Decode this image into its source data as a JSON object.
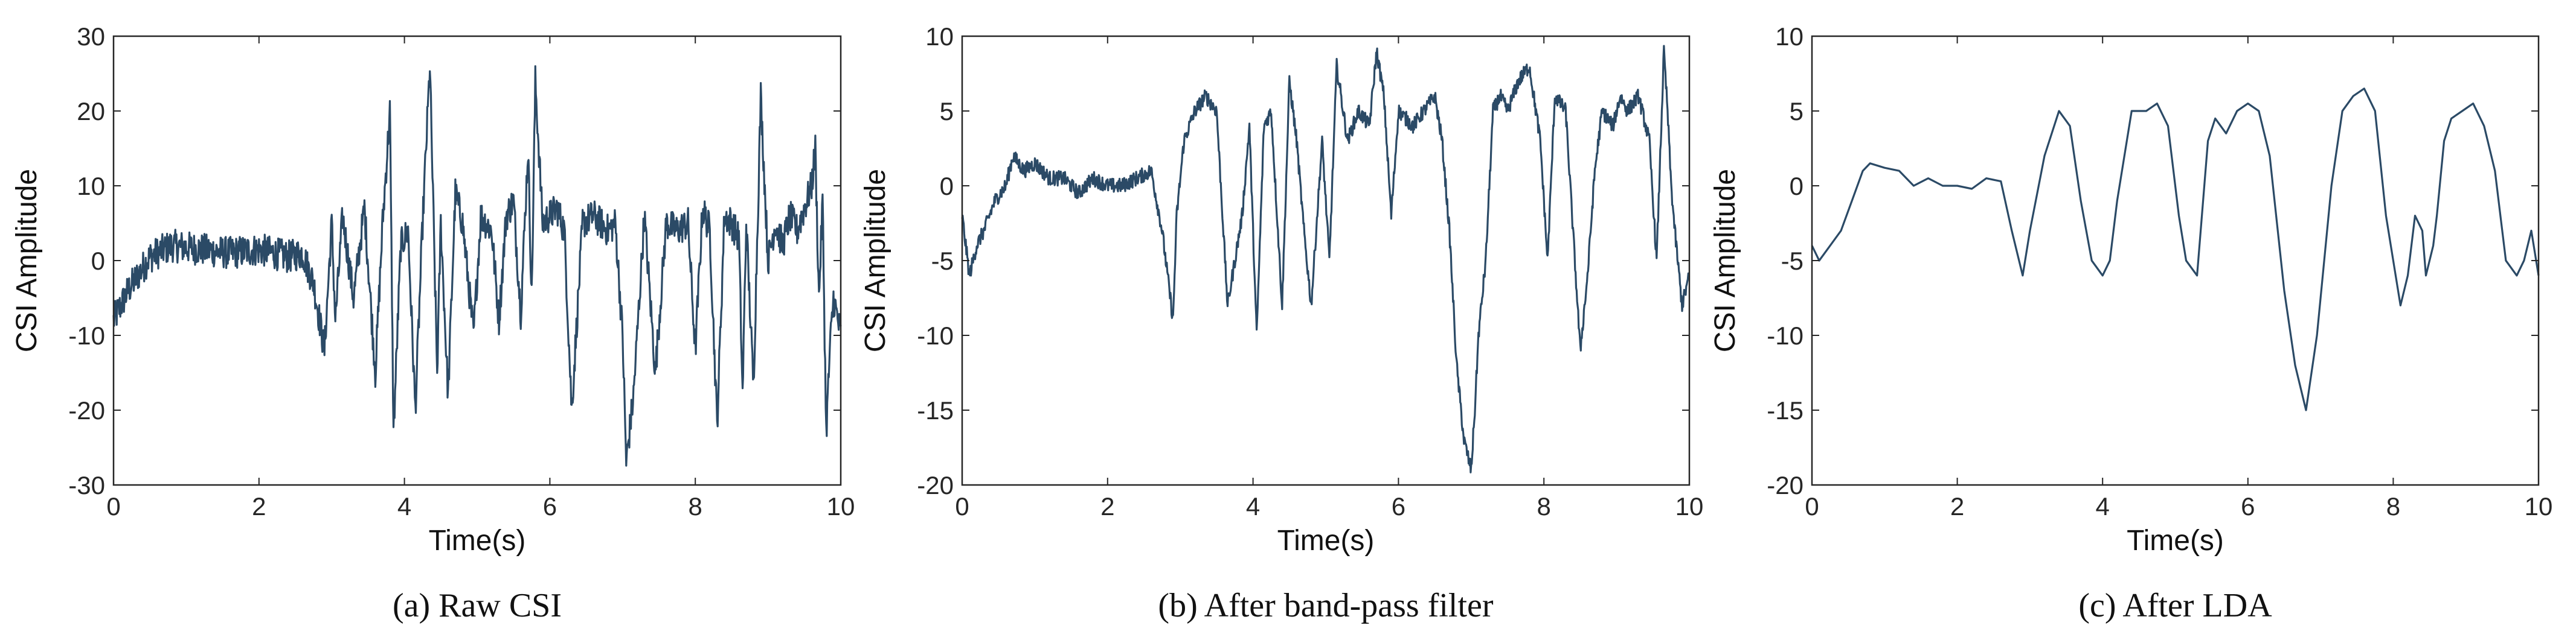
{
  "colors": {
    "line": "#2b4a66",
    "axis": "#262626",
    "background": "#ffffff"
  },
  "panels": [
    {
      "caption": "(a) Raw  CSI",
      "xlabel": "Time(s)",
      "ylabel": "CSI Amplitude",
      "xticks": [
        "0",
        "2",
        "4",
        "6",
        "8",
        "10"
      ],
      "yticks": [
        "30",
        "20",
        "10",
        "0",
        "-10",
        "-20",
        "-30"
      ]
    },
    {
      "caption": "(b) After band-pass filter",
      "xlabel": "Time(s)",
      "ylabel": "CSI Amplitude",
      "xticks": [
        "0",
        "2",
        "4",
        "6",
        "8",
        "10"
      ],
      "yticks": [
        "10",
        "5",
        "0",
        "-5",
        "-10",
        "-15",
        "-20"
      ]
    },
    {
      "caption": "(c) After LDA",
      "xlabel": "Time(s)",
      "ylabel": "CSI Amplitude",
      "xticks": [
        "0",
        "2",
        "4",
        "6",
        "8",
        "10"
      ],
      "yticks": [
        "10",
        "5",
        "0",
        "-5",
        "-10",
        "-15",
        "-20"
      ]
    }
  ],
  "chart_data": [
    {
      "type": "line",
      "xlim": [
        0,
        10
      ],
      "ylim": [
        -30,
        30
      ],
      "noise": 2.2,
      "series": [
        {
          "x": [
            0,
            0.2,
            0.4,
            0.5,
            0.8,
            1.2,
            1.6,
            2.0,
            2.4,
            2.6,
            2.75,
            2.9,
            3.0,
            3.05,
            3.15,
            3.3,
            3.45,
            3.6,
            3.7,
            3.8,
            3.85,
            3.95,
            4.05,
            4.15,
            4.25,
            4.35,
            4.45,
            4.5,
            4.6,
            4.7,
            4.8,
            4.95,
            5.05,
            5.2,
            5.3,
            5.4,
            5.5,
            5.6,
            5.7,
            5.75,
            5.8,
            5.9,
            6.0,
            6.1,
            6.2,
            6.3,
            6.45,
            6.6,
            6.8,
            6.9,
            7.0,
            7.05,
            7.15,
            7.3,
            7.45,
            7.6,
            7.75,
            7.9,
            8.0,
            8.1,
            8.2,
            8.3,
            8.4,
            8.5,
            8.6,
            8.65,
            8.7,
            8.8,
            8.9,
            9.0,
            9.1,
            9.2,
            9.3,
            9.4,
            9.5,
            9.6,
            9.65,
            9.7,
            9.75,
            9.8,
            9.85,
            9.9,
            10.0
          ],
          "y": [
            -8,
            -4,
            -1,
            0.5,
            2,
            1.5,
            1,
            1.5,
            0.5,
            1,
            -3,
            -12,
            5,
            -8,
            6,
            -5,
            7,
            -15,
            5,
            20,
            -23,
            2,
            4,
            -20,
            5,
            26,
            -15,
            5,
            -18,
            9,
            5,
            -10,
            6,
            4,
            -8,
            6,
            8,
            -7,
            15,
            -5,
            24,
            5,
            6,
            7,
            4,
            -20,
            5,
            6,
            4,
            5,
            -10,
            -27,
            -18,
            6,
            -15,
            5,
            4,
            5,
            -12,
            7,
            4,
            -22,
            6,
            5,
            3,
            -18,
            5,
            -17,
            22,
            0,
            5,
            2,
            6,
            4,
            7,
            10,
            15,
            -5,
            8,
            -23,
            -12,
            -5,
            -10
          ]
        }
      ]
    },
    {
      "type": "line",
      "xlim": [
        0,
        10
      ],
      "ylim": [
        -20,
        10
      ],
      "noise": 0.5,
      "series": [
        {
          "x": [
            0,
            0.1,
            0.2,
            0.3,
            0.45,
            0.6,
            0.7,
            0.85,
            1.0,
            1.2,
            1.4,
            1.6,
            1.8,
            2.0,
            2.2,
            2.4,
            2.6,
            2.75,
            2.9,
            2.95,
            3.05,
            3.2,
            3.35,
            3.5,
            3.65,
            3.75,
            3.85,
            3.95,
            4.05,
            4.15,
            4.25,
            4.4,
            4.5,
            4.6,
            4.7,
            4.8,
            4.95,
            5.05,
            5.15,
            5.3,
            5.45,
            5.6,
            5.7,
            5.8,
            5.9,
            6.0,
            6.2,
            6.35,
            6.5,
            6.6,
            6.7,
            6.8,
            6.9,
            7.0,
            7.05,
            7.1,
            7.2,
            7.3,
            7.4,
            7.5,
            7.65,
            7.8,
            7.95,
            8.05,
            8.15,
            8.3,
            8.4,
            8.5,
            8.6,
            8.7,
            8.8,
            8.95,
            9.05,
            9.15,
            9.3,
            9.45,
            9.55,
            9.65,
            9.7,
            9.75,
            9.8,
            9.9,
            10.0
          ],
          "y": [
            -2,
            -6,
            -4,
            -3,
            -1,
            0,
            2,
            1,
            1.5,
            0.5,
            0.5,
            -0.5,
            0.5,
            0,
            0,
            0.5,
            1,
            -3,
            -9,
            -2,
            3,
            5,
            6,
            5,
            -8,
            -5,
            -2,
            4,
            -10,
            4,
            5,
            -8,
            7,
            3,
            -3,
            -8,
            3,
            -5,
            8,
            3,
            5,
            4,
            9,
            6,
            -2,
            5,
            4,
            5,
            6,
            3,
            -3,
            -12,
            -17,
            -19,
            -15,
            -10,
            -5,
            5,
            6,
            5,
            7,
            8,
            3,
            -5,
            6,
            5,
            -3,
            -11,
            -6,
            1,
            5,
            4,
            6,
            5,
            6,
            3,
            -5,
            9,
            5,
            0,
            -3,
            -8,
            -6
          ]
        }
      ]
    },
    {
      "type": "line",
      "xlim": [
        0,
        10
      ],
      "ylim": [
        -20,
        10
      ],
      "noise": 0,
      "series": [
        {
          "x": [
            0,
            0.1,
            0.25,
            0.4,
            0.55,
            0.7,
            0.8,
            1.0,
            1.2,
            1.4,
            1.6,
            1.8,
            2.0,
            2.2,
            2.4,
            2.6,
            2.75,
            2.9,
            3.0,
            3.2,
            3.4,
            3.55,
            3.7,
            3.85,
            4.0,
            4.1,
            4.2,
            4.4,
            4.6,
            4.75,
            4.9,
            5.05,
            5.15,
            5.3,
            5.45,
            5.55,
            5.7,
            5.85,
            6.0,
            6.15,
            6.3,
            6.5,
            6.65,
            6.8,
            6.95,
            7.05,
            7.15,
            7.3,
            7.45,
            7.6,
            7.75,
            7.9,
            8.0,
            8.1,
            8.2,
            8.3,
            8.4,
            8.45,
            8.55,
            8.6,
            8.7,
            8.8,
            8.95,
            9.1,
            9.25,
            9.4,
            9.55,
            9.7,
            9.8,
            9.9,
            10.0
          ],
          "y": [
            -4,
            -5,
            -4,
            -3,
            -1,
            1,
            1.5,
            1.2,
            1,
            0,
            0.5,
            0,
            0,
            -0.2,
            0.5,
            0.3,
            -3,
            -6,
            -3,
            2,
            5,
            4,
            -1,
            -5,
            -6,
            -5,
            -1,
            5,
            5,
            5.5,
            4,
            -2,
            -5,
            -6,
            3,
            4.5,
            3.5,
            5,
            5.5,
            5,
            2,
            -7,
            -12,
            -15,
            -10,
            -5,
            0,
            5,
            6,
            6.5,
            5,
            -2,
            -5,
            -8,
            -6,
            -2,
            -3,
            -6,
            -4,
            -2,
            3,
            4.5,
            5,
            5.5,
            4,
            1,
            -5,
            -6,
            -5,
            -3,
            -6
          ]
        }
      ]
    }
  ]
}
